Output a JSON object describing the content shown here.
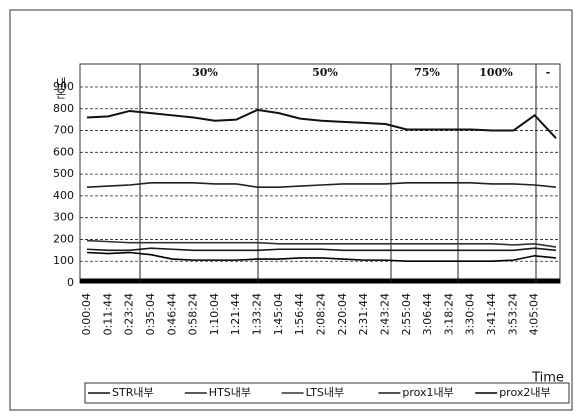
{
  "chart_data": {
    "type": "line",
    "y_label": "내온",
    "x_label": "Time",
    "annotations": [
      "30%",
      "50%",
      "75%",
      "100%",
      "-"
    ],
    "categories": [
      "0:00:04",
      "0:11:44",
      "0:23:24",
      "0:35:04",
      "0:46:44",
      "0:58:24",
      "1:10:04",
      "1:21:44",
      "1:33:24",
      "1:45:04",
      "1:56:44",
      "2:08:24",
      "2:20:04",
      "2:31:44",
      "2:43:24",
      "2:55:04",
      "3:06:44",
      "3:18:24",
      "3:30:04",
      "3:41:44",
      "3:53:24",
      "4:05:04",
      null
    ],
    "ylim": [
      0,
      900
    ],
    "yticks": [
      0,
      100,
      200,
      300,
      400,
      500,
      600,
      700,
      800,
      900
    ],
    "grid": true,
    "legend": "bottom",
    "series": [
      {
        "name": "STR내부",
        "color": "#111111",
        "values": [
          760,
          765,
          790,
          780,
          770,
          760,
          745,
          750,
          795,
          780,
          755,
          745,
          740,
          735,
          730,
          705,
          705,
          705,
          705,
          700,
          700,
          770,
          665
        ]
      },
      {
        "name": "HTS내부",
        "color": "#222222",
        "values": [
          440,
          445,
          450,
          460,
          460,
          460,
          455,
          455,
          440,
          440,
          445,
          450,
          455,
          455,
          455,
          460,
          460,
          460,
          460,
          455,
          455,
          450,
          440
        ]
      },
      {
        "name": "LTS내부",
        "color": "#333333",
        "values": [
          195,
          190,
          185,
          185,
          185,
          185,
          185,
          185,
          185,
          180,
          180,
          180,
          180,
          180,
          180,
          180,
          180,
          180,
          180,
          180,
          175,
          180,
          165
        ]
      },
      {
        "name": "prox1내부",
        "color": "#1a1a1a",
        "values": [
          155,
          150,
          150,
          160,
          155,
          150,
          150,
          150,
          150,
          155,
          155,
          155,
          150,
          150,
          150,
          150,
          150,
          150,
          150,
          150,
          150,
          160,
          150
        ]
      },
      {
        "name": "prox2내부",
        "color": "#000000",
        "values": [
          140,
          135,
          140,
          130,
          110,
          105,
          105,
          105,
          110,
          110,
          115,
          115,
          110,
          105,
          105,
          100,
          100,
          100,
          100,
          100,
          105,
          125,
          115
        ]
      }
    ]
  }
}
